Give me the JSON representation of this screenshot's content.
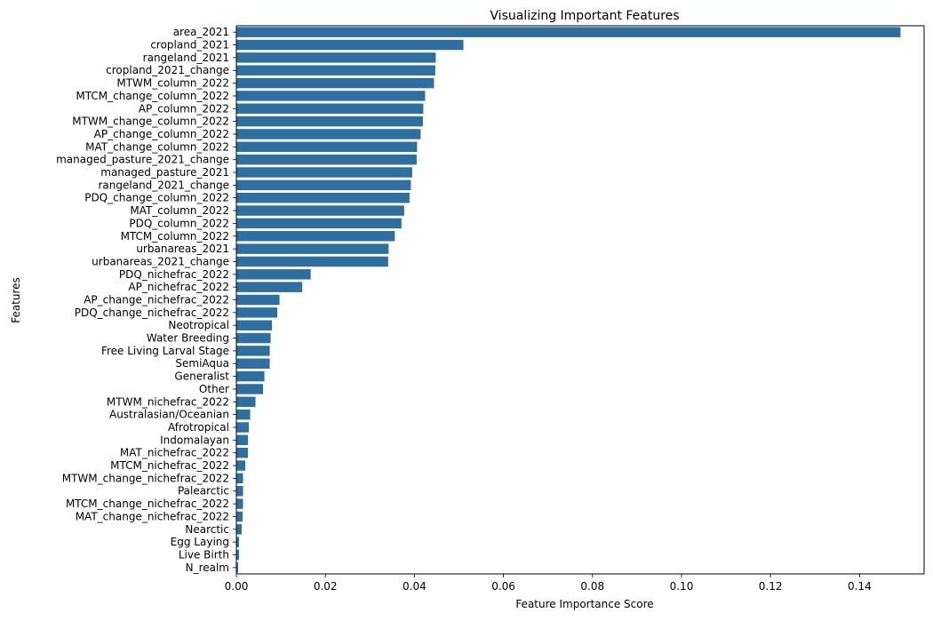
{
  "chart_data": {
    "type": "bar",
    "orientation": "horizontal",
    "title": "Visualizing Important Features",
    "xlabel": "Feature Importance Score",
    "ylabel": "Features",
    "xlim": [
      0,
      0.1545
    ],
    "xticks": [
      "0.00",
      "0.02",
      "0.04",
      "0.06",
      "0.08",
      "0.10",
      "0.12",
      "0.14"
    ],
    "grid": false,
    "bar_color": "#2f6f9f",
    "categories": [
      "area_2021",
      "cropland_2021",
      "rangeland_2021",
      "cropland_2021_change",
      "MTWM_column_2022",
      "MTCM_change_column_2022",
      "AP_column_2022",
      "MTWM_change_column_2022",
      "AP_change_column_2022",
      "MAT_change_column_2022",
      "managed_pasture_2021_change",
      "managed_pasture_2021",
      "rangeland_2021_change",
      "PDQ_change_column_2022",
      "MAT_column_2022",
      "PDQ_column_2022",
      "MTCM_column_2022",
      "urbanareas_2021",
      "urbanareas_2021_change",
      "PDQ_nichefrac_2022",
      "AP_nichefrac_2022",
      "AP_change_nichefrac_2022",
      "PDQ_change_nichefrac_2022",
      "Neotropical",
      "Water Breeding",
      "Free Living Larval Stage",
      "SemiAqua",
      "Generalist",
      "Other",
      "MTWM_nichefrac_2022",
      "Australasian/Oceanian",
      "Afrotropical",
      "Indomalayan",
      "MAT_nichefrac_2022",
      "MTCM_nichefrac_2022",
      "MTWM_change_nichefrac_2022",
      "Palearctic",
      "MTCM_change_nichefrac_2022",
      "MAT_change_nichefrac_2022",
      "Nearctic",
      "Egg Laying",
      "Live Birth ",
      "N_realm"
    ],
    "values": [
      0.1492,
      0.051,
      0.0448,
      0.0447,
      0.0444,
      0.0424,
      0.042,
      0.0419,
      0.0414,
      0.0406,
      0.0405,
      0.0395,
      0.0392,
      0.0389,
      0.0377,
      0.0371,
      0.0356,
      0.0342,
      0.0341,
      0.0167,
      0.0148,
      0.0097,
      0.0092,
      0.008,
      0.0077,
      0.0075,
      0.0075,
      0.0063,
      0.006,
      0.0043,
      0.0031,
      0.0028,
      0.0026,
      0.0026,
      0.002,
      0.0015,
      0.0015,
      0.0015,
      0.0014,
      0.0012,
      0.0006,
      0.0006,
      0.0004
    ]
  }
}
